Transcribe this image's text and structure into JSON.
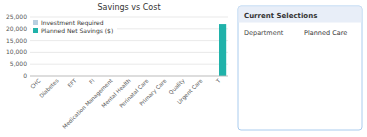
{
  "chart_data": {
    "type": "bar",
    "title": "Savings vs Cost",
    "categories": [
      "CHC",
      "Diabetes",
      "EFT",
      "FI",
      "Medication Management",
      "Mental Health",
      "Perinatal Care",
      "Primary Care",
      "Quality",
      "Urgent Care",
      "T"
    ],
    "series": [
      {
        "name": "Investment Required",
        "color": "#b8cfe0",
        "values": [
          0,
          0,
          0,
          0,
          0,
          0,
          0,
          0,
          0,
          0,
          0
        ]
      },
      {
        "name": "Planned Net Savings ($)",
        "color": "#20b2aa",
        "values": [
          0,
          0,
          0,
          0,
          0,
          0,
          0,
          0,
          0,
          0,
          22000
        ]
      }
    ],
    "ylim": [
      0,
      25000
    ],
    "yticks": [
      0,
      {
        "value": 5000,
        "label": "5,000"
      },
      {
        "value": 10000,
        "label": "10,000"
      },
      {
        "value": 15000,
        "label": "15,000"
      },
      {
        "value": 20000,
        "label": "20,000"
      },
      {
        "value": 25000,
        "label": "25,000"
      }
    ],
    "grid": true,
    "legend": "top-left",
    "annotations": [
      "Current Selections",
      "Department",
      "Planned Care"
    ]
  }
}
